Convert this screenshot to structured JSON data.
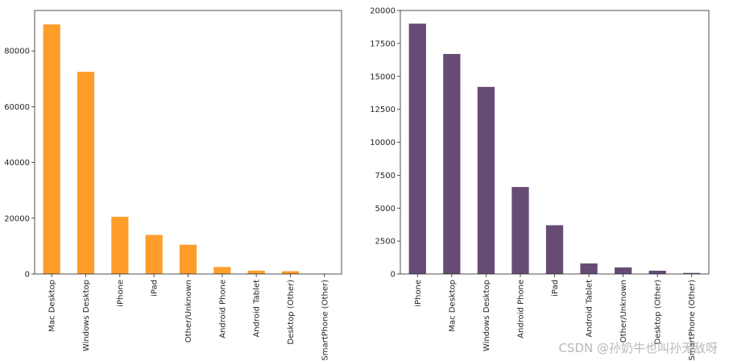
{
  "chart_data": [
    {
      "type": "bar",
      "title": "",
      "xlabel": "",
      "ylabel": "",
      "color": "#ff9d2b",
      "ylim": [
        0,
        94500
      ],
      "yticks": [
        0,
        20000,
        40000,
        60000,
        80000
      ],
      "categories": [
        "Mac Desktop",
        "Windows Desktop",
        "iPhone",
        "iPad",
        "Other/Unknown",
        "Android Phone",
        "Android Tablet",
        "Desktop (Other)",
        "SmartPhone (Other)"
      ],
      "values": [
        89500,
        72500,
        20500,
        14000,
        10500,
        2500,
        1200,
        1000,
        100
      ]
    },
    {
      "type": "bar",
      "title": "",
      "xlabel": "",
      "ylabel": "",
      "color": "#664b74",
      "ylim": [
        0,
        20000
      ],
      "yticks": [
        0,
        2500,
        5000,
        7500,
        10000,
        12500,
        15000,
        17500,
        20000
      ],
      "categories": [
        "iPhone",
        "Mac Desktop",
        "Windows Desktop",
        "Android Phone",
        "iPad",
        "Android Tablet",
        "Other/Unknown",
        "Desktop (Other)",
        "SmartPhone (Other)"
      ],
      "values": [
        19000,
        16700,
        14200,
        6600,
        3700,
        800,
        500,
        250,
        80
      ]
    }
  ],
  "watermark": "CSDN @孙奶牛也叫孙无敌呀"
}
